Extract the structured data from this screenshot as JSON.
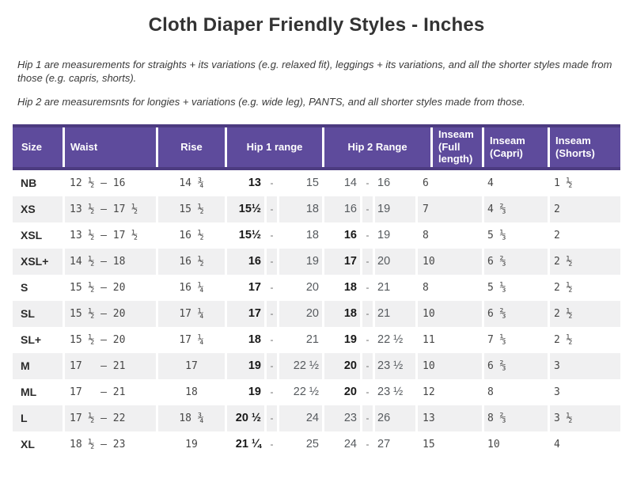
{
  "title": "Cloth Diaper Friendly Styles - Inches",
  "notes": [
    "Hip 1 are measurements for straights + its variations (e.g. relaxed fit), leggings + its variations, and all the shorter styles made from those (e.g. capris, shorts).",
    "Hip 2 are measuremsnts for longies + variations (e.g. wide leg), PANTS, and all shorter styles made from those."
  ],
  "table": {
    "headers": [
      "Size",
      "Waist",
      "Rise",
      "Hip 1 range",
      "Hip 2 Range",
      "Inseam (Full length)",
      "Inseam (Capri)",
      "Inseam (Shorts)"
    ],
    "range_separator": "-",
    "colors": {
      "header_bg": "#5e4b9c",
      "header_border": "#4c3b80",
      "header_text": "#ffffff",
      "stripe_bg": "#f0f0f1",
      "bold_value_text": "#191919",
      "regular_value_text": "#565a5e"
    },
    "rows": [
      {
        "size": "NB",
        "waist": "12 ½ – 16",
        "rise": "14 ¾",
        "hip1": {
          "from": "13",
          "from_bold": true,
          "to": "15"
        },
        "hip2": {
          "from": "14",
          "from_bold": false,
          "to": "16"
        },
        "inseam_full": "6",
        "inseam_capri": "4",
        "inseam_shorts": "1 ½"
      },
      {
        "size": "XS",
        "waist": "13 ½ – 17 ½",
        "rise": "15 ½",
        "hip1": {
          "from": "15½",
          "from_bold": true,
          "to": "18"
        },
        "hip2": {
          "from": "16",
          "from_bold": false,
          "to": "19"
        },
        "inseam_full": "7",
        "inseam_capri": "4 ⅔",
        "inseam_shorts": "2"
      },
      {
        "size": "XSL",
        "waist": "13 ½ – 17 ½",
        "rise": "16 ½",
        "hip1": {
          "from": "15½",
          "from_bold": true,
          "to": "18"
        },
        "hip2": {
          "from": "16",
          "from_bold": true,
          "to": "19"
        },
        "inseam_full": "8",
        "inseam_capri": "5 ⅓",
        "inseam_shorts": "2"
      },
      {
        "size": "XSL+",
        "waist": "14 ½ – 18",
        "rise": "16 ½",
        "hip1": {
          "from": "16",
          "from_bold": true,
          "to": "19"
        },
        "hip2": {
          "from": "17",
          "from_bold": true,
          "to": "20"
        },
        "inseam_full": "10",
        "inseam_capri": "6 ⅔",
        "inseam_shorts": "2 ½"
      },
      {
        "size": "S",
        "waist": "15 ½ – 20",
        "rise": "16 ¼",
        "hip1": {
          "from": "17",
          "from_bold": true,
          "to": "20"
        },
        "hip2": {
          "from": "18",
          "from_bold": true,
          "to": "21"
        },
        "inseam_full": "8",
        "inseam_capri": "5 ⅓",
        "inseam_shorts": "2 ½"
      },
      {
        "size": "SL",
        "waist": "15 ½ – 20",
        "rise": "17 ¼",
        "hip1": {
          "from": "17",
          "from_bold": true,
          "to": "20"
        },
        "hip2": {
          "from": "18",
          "from_bold": true,
          "to": "21"
        },
        "inseam_full": "10",
        "inseam_capri": "6 ⅔",
        "inseam_shorts": "2 ½"
      },
      {
        "size": "SL+",
        "waist": "15 ½ – 20",
        "rise": "17 ¼",
        "hip1": {
          "from": "18",
          "from_bold": true,
          "to": "21"
        },
        "hip2": {
          "from": "19",
          "from_bold": true,
          "to": "22 ½"
        },
        "inseam_full": "11",
        "inseam_capri": "7 ⅓",
        "inseam_shorts": "2 ½"
      },
      {
        "size": "M",
        "waist": "17   – 21",
        "rise": "17",
        "hip1": {
          "from": "19",
          "from_bold": true,
          "to": "22 ½"
        },
        "hip2": {
          "from": "20",
          "from_bold": true,
          "to": "23 ½"
        },
        "inseam_full": "10",
        "inseam_capri": "6 ⅔",
        "inseam_shorts": "3"
      },
      {
        "size": "ML",
        "waist": "17   – 21",
        "rise": "18",
        "hip1": {
          "from": "19",
          "from_bold": true,
          "to": "22 ½"
        },
        "hip2": {
          "from": "20",
          "from_bold": true,
          "to": "23 ½"
        },
        "inseam_full": "12",
        "inseam_capri": "8",
        "inseam_shorts": "3"
      },
      {
        "size": "L",
        "waist": "17 ½ – 22",
        "rise": "18 ¾",
        "hip1": {
          "from": "20 ½",
          "from_bold": true,
          "to": "24"
        },
        "hip2": {
          "from": "23",
          "from_bold": false,
          "to": "26"
        },
        "inseam_full": "13",
        "inseam_capri": "8 ⅔",
        "inseam_shorts": "3 ½"
      },
      {
        "size": "XL",
        "waist": "18 ½ – 23",
        "rise": "19",
        "hip1": {
          "from": "21 ¼",
          "from_bold": true,
          "to": "25"
        },
        "hip2": {
          "from": "24",
          "from_bold": false,
          "to": "27"
        },
        "inseam_full": "15",
        "inseam_capri": "10",
        "inseam_shorts": "4"
      }
    ]
  }
}
